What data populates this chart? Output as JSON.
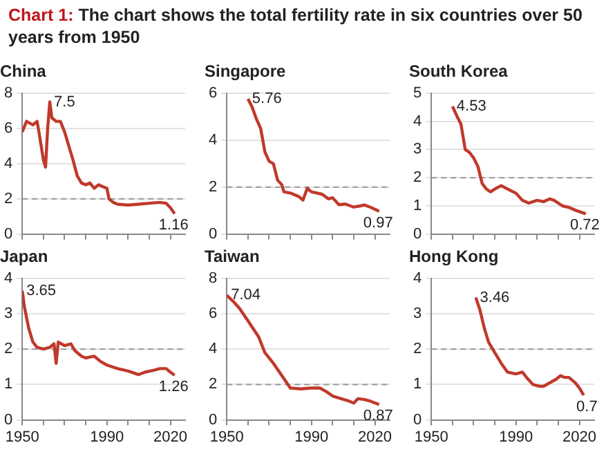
{
  "chart_data": [
    {
      "type": "line",
      "title": "China",
      "annotations": [
        "Chart 1: The chart shows the total fertility rate in six countries over 50 years from 1950",
        {
          "text": "7.5",
          "x": 1963,
          "y": 7.5
        },
        {
          "text": "1.16",
          "x": 2022,
          "y": 1.16
        }
      ],
      "color": "#c0392b",
      "x": [
        1950,
        1952,
        1955,
        1957,
        1958,
        1960,
        1961,
        1962,
        1963,
        1964,
        1966,
        1968,
        1970,
        1972,
        1974,
        1976,
        1978,
        1980,
        1982,
        1984,
        1986,
        1988,
        1990,
        1991,
        1993,
        1995,
        2000,
        2005,
        2010,
        2015,
        2018,
        2020,
        2022
      ],
      "values": [
        5.8,
        6.4,
        6.2,
        6.4,
        5.7,
        4.2,
        3.8,
        6.0,
        7.5,
        6.6,
        6.4,
        6.4,
        5.8,
        5.0,
        4.2,
        3.3,
        2.9,
        2.8,
        2.9,
        2.6,
        2.8,
        2.7,
        2.6,
        2.0,
        1.8,
        1.7,
        1.65,
        1.7,
        1.75,
        1.8,
        1.75,
        1.5,
        1.16
      ],
      "xlim": [
        1950,
        2027
      ],
      "xticks": [
        {
          "value": 1950,
          "label": null
        },
        {
          "value": 1960,
          "label": null
        },
        {
          "value": 1970,
          "label": null
        },
        {
          "value": 1980,
          "label": null
        },
        {
          "value": 1990,
          "label": null
        },
        {
          "value": 2000,
          "label": null
        },
        {
          "value": 2010,
          "label": null
        },
        {
          "value": 2020,
          "label": null
        }
      ],
      "ylim": [
        0,
        8
      ],
      "yticks": [
        0,
        2,
        4,
        6,
        8
      ],
      "grid": "y",
      "tick_labels": "y",
      "line_style": "solid",
      "ref_lines": [
        {
          "axis": "y",
          "value": 2,
          "color": "#999999",
          "line_style": "dashed"
        }
      ]
    },
    {
      "type": "line",
      "title": "Singapore",
      "annotations": [
        {
          "text": "5.76",
          "x": 1960,
          "y": 5.76
        },
        {
          "text": "0.97",
          "x": 2022,
          "y": 0.97
        }
      ],
      "color": "#c0392b",
      "x": [
        1960,
        1962,
        1964,
        1966,
        1968,
        1970,
        1972,
        1974,
        1976,
        1977,
        1980,
        1984,
        1986,
        1988,
        1990,
        1995,
        1998,
        2000,
        2003,
        2006,
        2010,
        2013,
        2015,
        2018,
        2022
      ],
      "values": [
        5.76,
        5.4,
        4.9,
        4.5,
        3.5,
        3.1,
        3.0,
        2.3,
        2.1,
        1.8,
        1.75,
        1.6,
        1.45,
        1.95,
        1.8,
        1.7,
        1.5,
        1.55,
        1.25,
        1.28,
        1.15,
        1.2,
        1.24,
        1.14,
        0.97
      ],
      "xlim": [
        1950,
        2027
      ],
      "xticks": [
        {
          "value": 1950,
          "label": null
        },
        {
          "value": 1960,
          "label": null
        },
        {
          "value": 1970,
          "label": null
        },
        {
          "value": 1980,
          "label": null
        },
        {
          "value": 1990,
          "label": null
        },
        {
          "value": 2000,
          "label": null
        },
        {
          "value": 2010,
          "label": null
        },
        {
          "value": 2020,
          "label": null
        }
      ],
      "ylim": [
        0,
        6
      ],
      "yticks": [
        0,
        2,
        4,
        6
      ],
      "grid": "y",
      "tick_labels": "y",
      "line_style": "solid",
      "ref_lines": [
        {
          "axis": "y",
          "value": 2,
          "color": "#999999",
          "line_style": "dashed"
        }
      ]
    },
    {
      "type": "line",
      "title": "South Korea",
      "annotations": [
        {
          "text": "4.53",
          "x": 1960,
          "y": 4.53
        },
        {
          "text": "0.72",
          "x": 2023,
          "y": 0.72
        }
      ],
      "color": "#c0392b",
      "x": [
        1960,
        1962,
        1964,
        1966,
        1968,
        1970,
        1972,
        1974,
        1976,
        1978,
        1980,
        1983,
        1986,
        1990,
        1993,
        1996,
        2000,
        2003,
        2006,
        2008,
        2012,
        2015,
        2018,
        2023
      ],
      "values": [
        4.53,
        4.2,
        3.9,
        3.0,
        2.9,
        2.7,
        2.4,
        1.8,
        1.6,
        1.5,
        1.6,
        1.72,
        1.6,
        1.45,
        1.2,
        1.1,
        1.2,
        1.15,
        1.25,
        1.2,
        1.0,
        0.95,
        0.85,
        0.72
      ],
      "xlim": [
        1950,
        2027
      ],
      "xticks": [
        {
          "value": 1950,
          "label": null
        },
        {
          "value": 1960,
          "label": null
        },
        {
          "value": 1970,
          "label": null
        },
        {
          "value": 1980,
          "label": null
        },
        {
          "value": 1990,
          "label": null
        },
        {
          "value": 2000,
          "label": null
        },
        {
          "value": 2010,
          "label": null
        },
        {
          "value": 2020,
          "label": null
        }
      ],
      "ylim": [
        0,
        5
      ],
      "yticks": [
        0,
        1,
        2,
        3,
        4,
        5
      ],
      "grid": "y",
      "tick_labels": "y",
      "line_style": "solid",
      "ref_lines": [
        {
          "axis": "y",
          "value": 2,
          "color": "#999999",
          "line_style": "dashed"
        }
      ]
    },
    {
      "type": "line",
      "title": "Japan",
      "annotations": [
        {
          "text": "3.65",
          "x": 1950,
          "y": 3.65
        },
        {
          "text": "1.26",
          "x": 2022,
          "y": 1.26
        }
      ],
      "color": "#c0392b",
      "x": [
        1950,
        1951,
        1953,
        1955,
        1957,
        1960,
        1963,
        1965,
        1966,
        1967,
        1970,
        1973,
        1975,
        1978,
        1980,
        1984,
        1987,
        1990,
        1995,
        2000,
        2005,
        2008,
        2012,
        2015,
        2018,
        2020,
        2022
      ],
      "values": [
        3.65,
        3.2,
        2.6,
        2.2,
        2.05,
        2.0,
        2.05,
        2.15,
        1.6,
        2.2,
        2.1,
        2.15,
        1.95,
        1.8,
        1.75,
        1.8,
        1.65,
        1.55,
        1.45,
        1.38,
        1.28,
        1.35,
        1.4,
        1.45,
        1.45,
        1.35,
        1.26
      ],
      "xlim": [
        1950,
        2027
      ],
      "xticks": [
        {
          "value": 1950,
          "label": "1950"
        },
        {
          "value": 1960,
          "label": null
        },
        {
          "value": 1970,
          "label": null
        },
        {
          "value": 1980,
          "label": null
        },
        {
          "value": 1990,
          "label": "1990"
        },
        {
          "value": 2000,
          "label": null
        },
        {
          "value": 2010,
          "label": null
        },
        {
          "value": 2020,
          "label": "2020"
        }
      ],
      "ylim": [
        0,
        4
      ],
      "yticks": [
        0,
        1,
        2,
        3,
        4
      ],
      "grid": "y",
      "line_style": "solid",
      "ref_lines": [
        {
          "axis": "y",
          "value": 2,
          "color": "#999999",
          "line_style": "dashed"
        }
      ]
    },
    {
      "type": "line",
      "title": "Taiwan",
      "annotations": [
        {
          "text": "7.04",
          "x": 1950,
          "y": 7.04
        },
        {
          "text": "0.87",
          "x": 2022,
          "y": 0.87
        }
      ],
      "color": "#c0392b",
      "x": [
        1950,
        1953,
        1956,
        1960,
        1965,
        1968,
        1972,
        1976,
        1980,
        1985,
        1990,
        1994,
        1997,
        2000,
        2004,
        2008,
        2010,
        2012,
        2015,
        2018,
        2022
      ],
      "values": [
        7.04,
        6.7,
        6.3,
        5.6,
        4.7,
        3.8,
        3.2,
        2.5,
        1.8,
        1.75,
        1.8,
        1.8,
        1.6,
        1.35,
        1.2,
        1.05,
        0.95,
        1.2,
        1.15,
        1.05,
        0.87
      ],
      "xlim": [
        1950,
        2027
      ],
      "xticks": [
        {
          "value": 1950,
          "label": "1950"
        },
        {
          "value": 1960,
          "label": null
        },
        {
          "value": 1970,
          "label": null
        },
        {
          "value": 1980,
          "label": null
        },
        {
          "value": 1990,
          "label": "1990"
        },
        {
          "value": 2000,
          "label": null
        },
        {
          "value": 2010,
          "label": null
        },
        {
          "value": 2020,
          "label": "2020"
        }
      ],
      "ylim": [
        0,
        8
      ],
      "yticks": [
        0,
        2,
        4,
        6,
        8
      ],
      "grid": "y",
      "line_style": "solid",
      "ref_lines": [
        {
          "axis": "y",
          "value": 2,
          "color": "#999999",
          "line_style": "dashed"
        }
      ]
    },
    {
      "type": "line",
      "title": "Hong Kong",
      "annotations": [
        {
          "text": "3.46",
          "x": 1971,
          "y": 3.46
        },
        {
          "text": "0.7",
          "x": 2022,
          "y": 0.7
        }
      ],
      "color": "#c0392b",
      "x": [
        1971,
        1973,
        1975,
        1977,
        1980,
        1983,
        1986,
        1990,
        1993,
        1995,
        1998,
        2001,
        2003,
        2006,
        2009,
        2011,
        2013,
        2015,
        2018,
        2020,
        2022
      ],
      "values": [
        3.46,
        3.1,
        2.6,
        2.2,
        1.9,
        1.6,
        1.35,
        1.3,
        1.35,
        1.2,
        1.0,
        0.95,
        0.95,
        1.05,
        1.15,
        1.25,
        1.2,
        1.2,
        1.05,
        0.9,
        0.7
      ],
      "xlim": [
        1950,
        2027
      ],
      "xticks": [
        {
          "value": 1950,
          "label": "1950"
        },
        {
          "value": 1960,
          "label": null
        },
        {
          "value": 1970,
          "label": null
        },
        {
          "value": 1980,
          "label": null
        },
        {
          "value": 1990,
          "label": "1990"
        },
        {
          "value": 2000,
          "label": null
        },
        {
          "value": 2010,
          "label": null
        },
        {
          "value": 2020,
          "label": "2020"
        }
      ],
      "ylim": [
        0,
        4
      ],
      "yticks": [
        0,
        1,
        2,
        3,
        4
      ],
      "grid": "y",
      "line_style": "solid",
      "ref_lines": [
        {
          "axis": "y",
          "value": 2,
          "color": "#999999",
          "line_style": "dashed"
        }
      ]
    }
  ]
}
